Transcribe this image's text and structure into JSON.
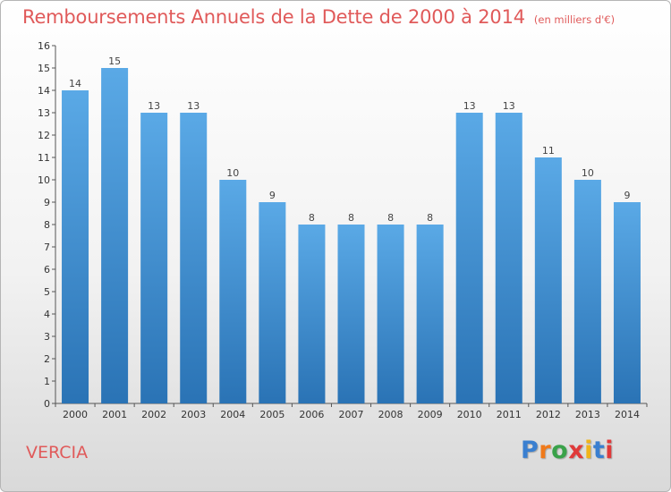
{
  "header": {
    "title": "Remboursements Annuels de la Dette de 2000 à 2014",
    "unit": "(en milliers d'€)"
  },
  "footer": {
    "place": "VERCIA",
    "logo": {
      "text": "Proxiti",
      "letter_colors": [
        "#3a7fd0",
        "#f07a1a",
        "#3aa24a",
        "#e03a3a",
        "#f0b41a",
        "#3a7fd0",
        "#e03a3a"
      ]
    }
  },
  "colors": {
    "bar_light": "#5aa9e6",
    "bar_dark": "#2a73b5",
    "title": "#e05a5a"
  },
  "chart_data": {
    "type": "bar",
    "categories": [
      "2000",
      "2001",
      "2002",
      "2003",
      "2004",
      "2005",
      "2006",
      "2007",
      "2008",
      "2009",
      "2010",
      "2011",
      "2012",
      "2013",
      "2014"
    ],
    "values": [
      14,
      15,
      13,
      13,
      10,
      9,
      8,
      8,
      8,
      8,
      13,
      13,
      11,
      10,
      9
    ],
    "title": "Remboursements Annuels de la Dette de 2000 à 2014",
    "ylim": [
      0,
      16
    ],
    "yticks": [
      0,
      1,
      2,
      3,
      4,
      5,
      6,
      7,
      8,
      9,
      10,
      11,
      12,
      13,
      14,
      15,
      16
    ],
    "grid": false,
    "data_labels": true
  }
}
